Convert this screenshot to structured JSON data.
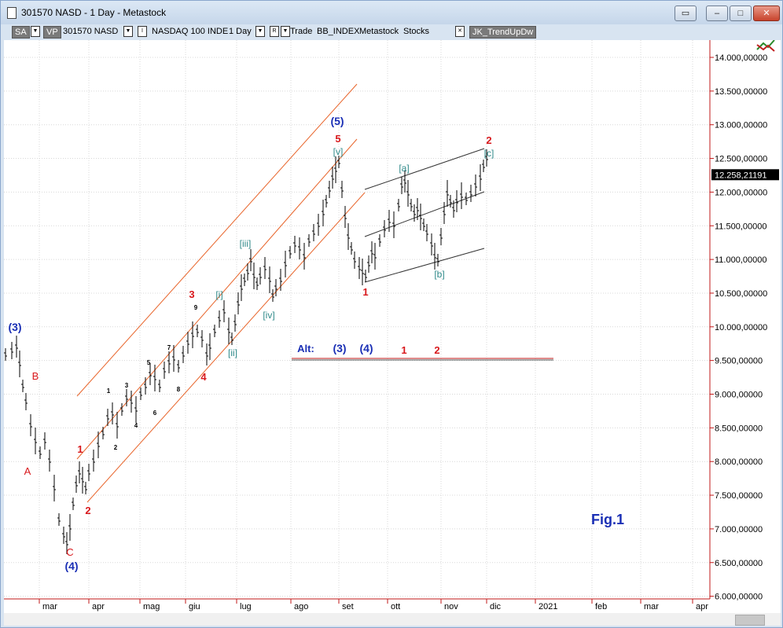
{
  "window": {
    "title": "301570 NASD - 1 Day - Metastock",
    "controls": {
      "restore_down": "▭",
      "minimize": "‒",
      "maximize": "□",
      "close": "✕"
    }
  },
  "toolbar": {
    "sa": "SA",
    "vp": "VP",
    "symbol": "301570 NASD",
    "i_box": "I",
    "index": "NASDAQ 100 INDE",
    "period": "1 Day",
    "r_box": "R",
    "trade": "Trade",
    "bb": "BB_INDEX",
    "metastock": "Metastock",
    "stocks": "Stocks",
    "x_box": "✕",
    "expert": "JK_TrendUpDw"
  },
  "chart_data": {
    "type": "bar",
    "y_ticks": [
      "14.000,00000",
      "13.500,00000",
      "13.000,00000",
      "12.500,00000",
      "12.000,00000",
      "11.500,00000",
      "11.000,00000",
      "10.500,00000",
      "10.000,00000",
      "9.500,00000",
      "9.000,00000",
      "8.500,00000",
      "8.000,00000",
      "7.500,00000",
      "7.000,00000",
      "6.500,00000",
      "6.000,00000"
    ],
    "x_ticks": [
      "mar",
      "apr",
      "mag",
      "giu",
      "lug",
      "ago",
      "set",
      "ott",
      "nov",
      "dic",
      "2021",
      "feb",
      "mar",
      "apr"
    ],
    "last_price": "12.258,21191",
    "ylim": [
      6000,
      14000
    ],
    "grid": true,
    "annotation": "Fig.1",
    "alt_label": "Alt:",
    "wave_labels": {
      "blue": [
        "(3)",
        "(4)",
        "(5)",
        "(3)",
        "(4)"
      ],
      "red": [
        "B",
        "A",
        "C",
        "1",
        "2",
        "3",
        "4",
        "5",
        "1",
        "2",
        "1",
        "2"
      ],
      "black": [
        "1",
        "2",
        "3",
        "4",
        "5",
        "6",
        "7",
        "8",
        "9"
      ],
      "teal": [
        "[i]",
        "[ii]",
        "[iii]",
        "[iv]",
        "[v]",
        "[a]",
        "[b]",
        "[c]"
      ]
    },
    "colors": {
      "blue": "#1a2fb5",
      "red": "#d8181c",
      "teal": "#2f8a8a",
      "channel": "#e8642a",
      "grid": "#d8d8d8",
      "axis_red": "#c01818"
    }
  }
}
